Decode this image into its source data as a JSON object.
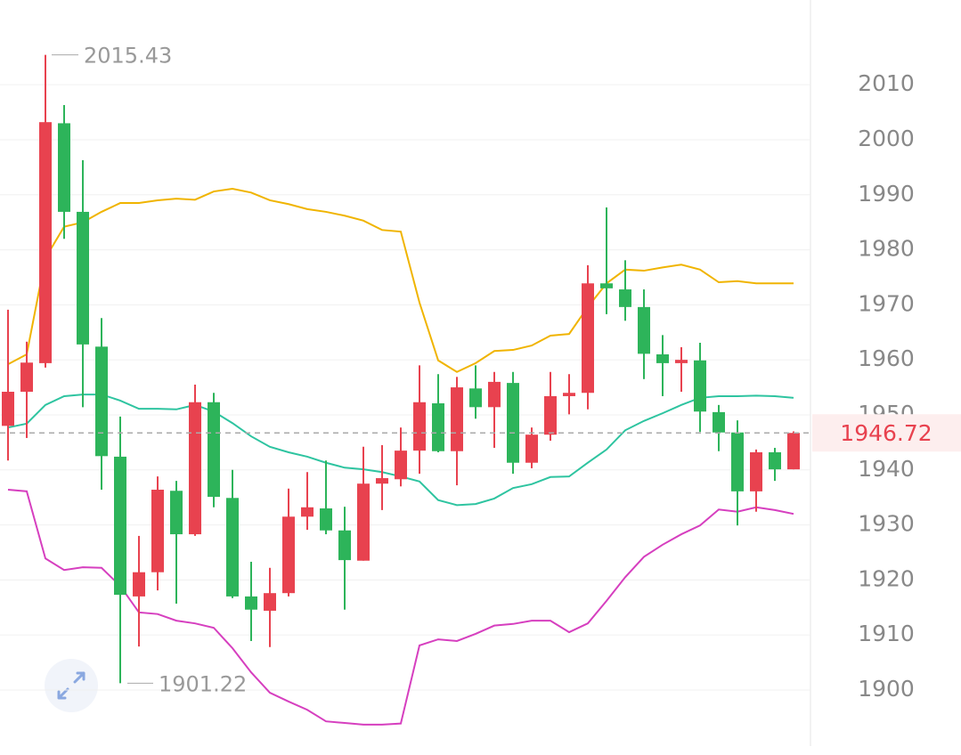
{
  "chart_data": {
    "type": "candlestick",
    "open": [
      1948.0,
      1954.2,
      1959.4,
      2003.0,
      1986.9,
      1962.4,
      1942.4,
      1917.0,
      1921.4,
      1936.2,
      1928.3,
      1952.3,
      1934.9,
      1917.0,
      1914.4,
      1917.6,
      1931.5,
      1933.0,
      1929.0,
      1923.5,
      1937.5,
      1938.3,
      1943.5,
      1952.1,
      1943.4,
      1954.8,
      1951.4,
      1955.8,
      1941.3,
      1946.4,
      1953.4,
      1954.0,
      1973.9,
      1972.8,
      1969.6,
      1961.0,
      1959.4,
      1959.9,
      1950.5,
      1946.8,
      1936.1,
      1943.2,
      1940.1
    ],
    "high": [
      1969.1,
      1963.3,
      2015.43,
      2006.3,
      1996.3,
      1967.6,
      1949.7,
      1928.0,
      1938.8,
      1938.0,
      1955.5,
      1954.0,
      1940.0,
      1923.3,
      1922.2,
      1936.6,
      1939.6,
      1941.7,
      1933.3,
      1944.2,
      1944.5,
      1947.7,
      1959.0,
      1957.4,
      1956.9,
      1959.0,
      1957.8,
      1957.8,
      1947.7,
      1957.8,
      1957.4,
      1977.2,
      1987.7,
      1978.1,
      1972.8,
      1964.5,
      1962.3,
      1963.1,
      1951.8,
      1949.0,
      1943.7,
      1944.0,
      1947.0
    ],
    "low": [
      1941.7,
      1945.8,
      1958.6,
      1982.0,
      1951.4,
      1936.4,
      1901.22,
      1907.9,
      1918.1,
      1915.7,
      1928.0,
      1933.2,
      1916.7,
      1908.9,
      1907.8,
      1917.0,
      1929.1,
      1928.3,
      1914.6,
      1923.5,
      1932.7,
      1937.0,
      1939.3,
      1943.2,
      1937.2,
      1949.3,
      1944.0,
      1939.3,
      1940.3,
      1945.3,
      1950.1,
      1951.0,
      1968.3,
      1967.1,
      1956.5,
      1953.4,
      1954.2,
      1946.9,
      1943.4,
      1929.9,
      1932.4,
      1938.0,
      1940.1
    ],
    "close": [
      1954.2,
      1959.5,
      2003.2,
      1986.9,
      1962.8,
      1942.5,
      1917.3,
      1921.4,
      1936.4,
      1928.3,
      1952.3,
      1935.1,
      1917.0,
      1914.6,
      1917.6,
      1931.5,
      1933.2,
      1929.0,
      1923.6,
      1937.5,
      1938.5,
      1943.5,
      1952.3,
      1943.4,
      1955.0,
      1951.4,
      1956.0,
      1941.3,
      1946.4,
      1953.4,
      1954.0,
      1973.9,
      1973.0,
      1969.6,
      1961.1,
      1959.4,
      1960.0,
      1950.6,
      1946.8,
      1936.1,
      1943.2,
      1940.1,
      1946.72
    ],
    "up_color": "#e8424f",
    "down_color": "#2db45a",
    "lines": [
      {
        "color": "#f0b400",
        "values": [
          1959.2,
          1961.0,
          1978.5,
          1984.2,
          1985.0,
          1986.9,
          1988.5,
          1988.5,
          1989.0,
          1989.3,
          1989.1,
          1990.6,
          1991.1,
          1990.4,
          1989.0,
          1988.3,
          1987.4,
          1986.9,
          1986.2,
          1985.3,
          1983.6,
          1983.3,
          1970.4,
          1959.9,
          1957.8,
          1959.4,
          1961.6,
          1961.8,
          1962.6,
          1964.4,
          1964.7,
          1969.6,
          1973.9,
          1976.4,
          1976.2,
          1976.8,
          1977.3,
          1976.4,
          1974.1,
          1974.3,
          1973.9,
          1973.9,
          1973.9
        ]
      },
      {
        "color": "#2ec4a0",
        "values": [
          1947.7,
          1948.4,
          1951.8,
          1953.4,
          1953.7,
          1953.7,
          1952.6,
          1951.1,
          1951.1,
          1951.0,
          1951.8,
          1950.6,
          1948.5,
          1946.1,
          1944.2,
          1943.2,
          1942.4,
          1941.3,
          1940.4,
          1940.1,
          1939.6,
          1938.8,
          1937.9,
          1934.5,
          1933.6,
          1933.8,
          1934.8,
          1936.7,
          1937.4,
          1938.7,
          1938.8,
          1941.3,
          1943.7,
          1947.2,
          1948.9,
          1950.3,
          1951.8,
          1953.1,
          1953.4,
          1953.4,
          1953.5,
          1953.4,
          1953.1
        ]
      },
      {
        "color": "#d63fbf",
        "values": [
          1936.4,
          1936.1,
          1923.9,
          1921.8,
          1922.3,
          1922.2,
          1918.9,
          1914.1,
          1913.8,
          1912.6,
          1912.1,
          1911.3,
          1907.6,
          1903.2,
          1899.5,
          1897.9,
          1896.4,
          1894.3,
          1894.0,
          1893.7,
          1893.7,
          1893.9,
          1908.1,
          1909.2,
          1908.9,
          1910.2,
          1911.7,
          1912.0,
          1912.6,
          1912.6,
          1910.5,
          1912.1,
          1916.2,
          1920.5,
          1924.2,
          1926.4,
          1928.3,
          1929.9,
          1932.8,
          1932.4,
          1933.2,
          1932.7,
          1932.0
        ]
      }
    ],
    "ylim": [
      1889.8,
      2025.4
    ],
    "yticks": [
      1900,
      1910,
      1920,
      1930,
      1940,
      1950,
      1960,
      1970,
      1980,
      1990,
      2000,
      2010
    ],
    "grid": true
  }
}
